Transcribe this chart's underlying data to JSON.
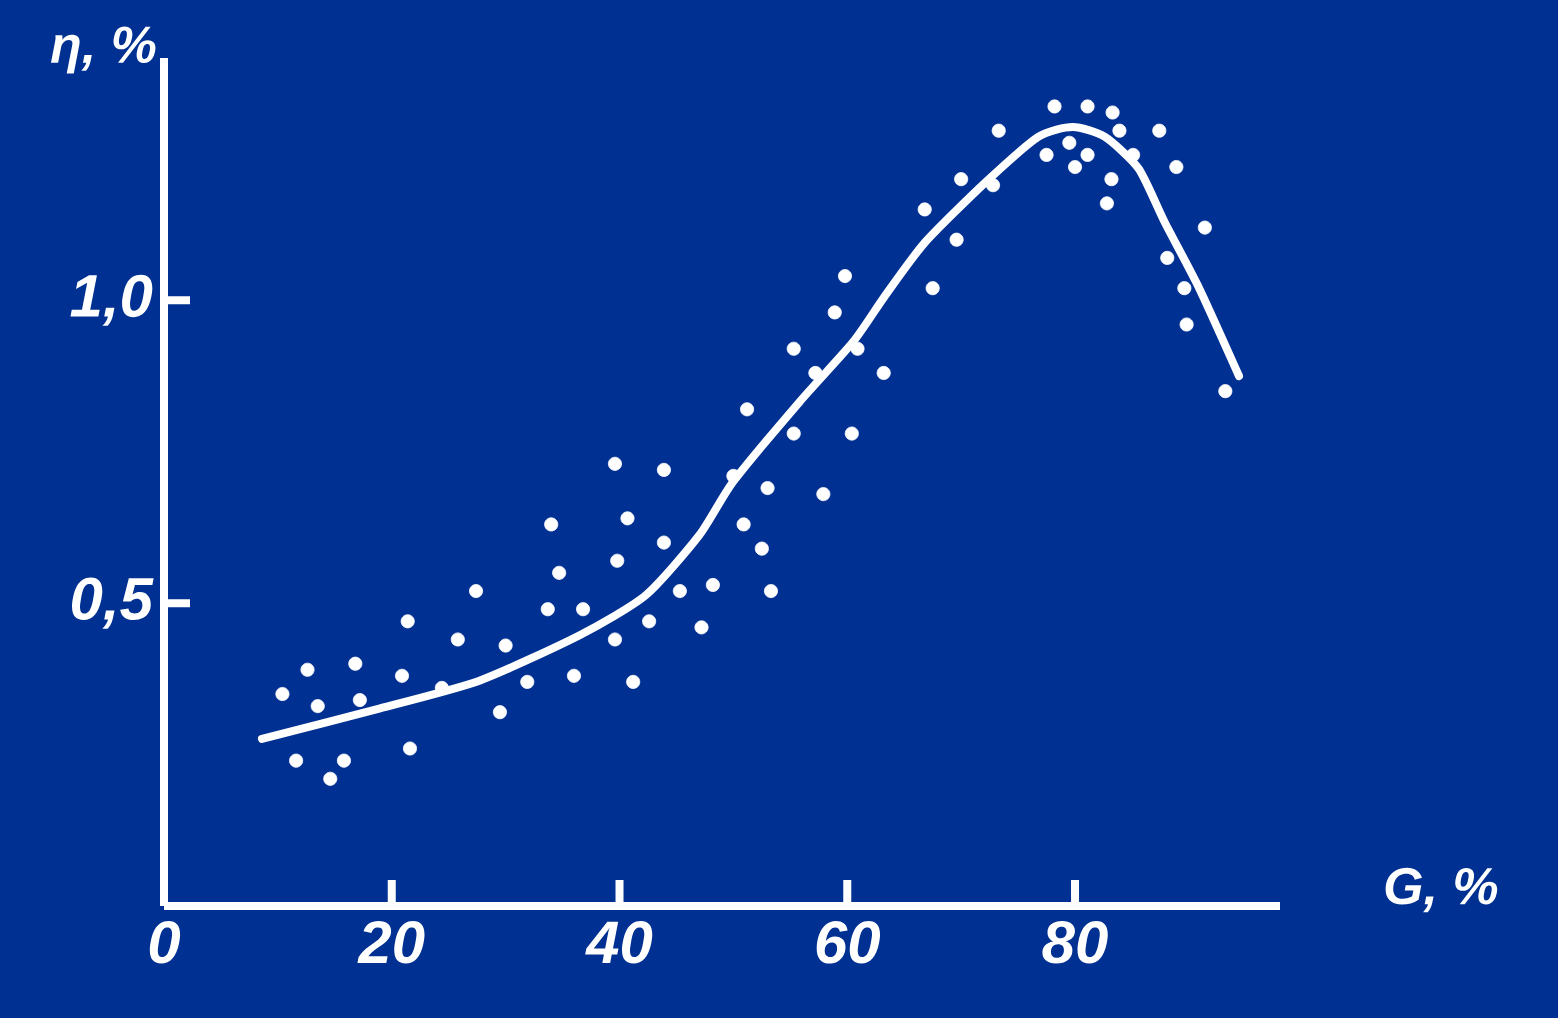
{
  "chart_data": {
    "type": "scatter",
    "xlabel": "G, %",
    "ylabel": "η, %",
    "xlim": [
      0,
      98
    ],
    "ylim": [
      0,
      1.4
    ],
    "xticks": [
      0,
      20,
      40,
      60,
      80
    ],
    "yticks": [
      {
        "value": 0.5,
        "label": "0,5"
      },
      {
        "value": 1.0,
        "label": "1,0"
      }
    ],
    "grid": false,
    "legend": false,
    "series": [
      {
        "color": "#ffffff",
        "marker": "circle",
        "x": [
          39.6,
          43.9,
          34.0,
          40.7,
          43.9,
          39.8,
          34.7,
          45.3,
          27.4,
          33.7,
          36.8,
          21.4,
          42.6,
          39.6,
          25.8,
          30.0,
          12.6,
          16.8,
          20.9,
          31.9,
          36.0,
          41.2,
          10.4,
          13.5,
          17.2,
          24.4,
          29.5,
          11.6,
          15.8,
          21.6,
          14.6,
          59.8,
          67.5,
          58.9,
          55.3,
          60.9,
          57.2,
          63.2,
          51.2,
          55.3,
          60.4,
          50.0,
          53.0,
          57.9,
          50.9,
          52.5,
          48.2,
          53.3,
          47.2,
          78.2,
          81.1,
          83.3,
          73.3,
          83.9,
          87.4,
          77.5,
          79.5,
          81.1,
          80.0,
          85.1,
          88.9,
          70.0,
          83.2,
          72.8,
          66.8,
          82.8,
          91.4,
          69.6,
          88.1,
          89.6,
          89.8,
          93.2
        ],
        "values": [
          0.73,
          0.72,
          0.63,
          0.64,
          0.6,
          0.57,
          0.55,
          0.52,
          0.52,
          0.49,
          0.49,
          0.47,
          0.47,
          0.44,
          0.44,
          0.43,
          0.39,
          0.4,
          0.38,
          0.37,
          0.38,
          0.37,
          0.35,
          0.33,
          0.34,
          0.36,
          0.32,
          0.24,
          0.24,
          0.26,
          0.21,
          1.04,
          1.02,
          0.98,
          0.92,
          0.92,
          0.88,
          0.88,
          0.82,
          0.78,
          0.78,
          0.71,
          0.69,
          0.68,
          0.63,
          0.59,
          0.53,
          0.52,
          0.46,
          1.32,
          1.32,
          1.31,
          1.28,
          1.28,
          1.28,
          1.24,
          1.26,
          1.24,
          1.22,
          1.24,
          1.22,
          1.2,
          1.2,
          1.19,
          1.15,
          1.16,
          1.12,
          1.1,
          1.07,
          1.02,
          0.96,
          0.85
        ]
      },
      {
        "type": "line",
        "color": "#ffffff",
        "marker": "none",
        "line_style": "solid",
        "x": [
          8.6,
          18.9,
          27.7,
          36.5,
          42.3,
          47.0,
          50.0,
          55.8,
          60.5,
          63.3,
          66.8,
          72.1,
          76.8,
          79.8,
          82.6,
          85.6,
          87.9,
          90.9,
          94.4
        ],
        "values": [
          0.276,
          0.326,
          0.372,
          0.447,
          0.513,
          0.612,
          0.701,
          0.832,
          0.931,
          1.007,
          1.095,
          1.194,
          1.27,
          1.286,
          1.27,
          1.217,
          1.128,
          1.02,
          0.875
        ]
      }
    ]
  }
}
